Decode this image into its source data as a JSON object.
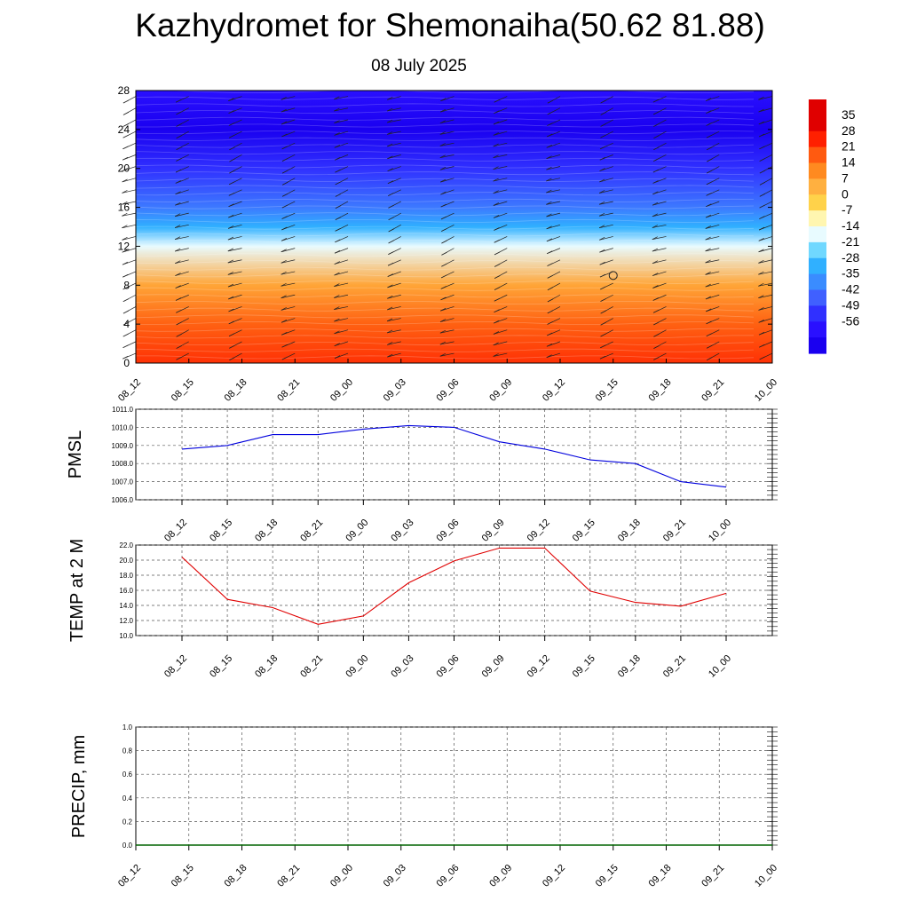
{
  "header": {
    "title": "Kazhydromet for Shemonaiha(50.62 81.88)",
    "subtitle": "08 July 2025"
  },
  "chart_data": [
    {
      "type": "heatmap",
      "name": "cross-section",
      "xlabel": "",
      "ylabel": "",
      "x": [
        "08_12",
        "08_15",
        "08_18",
        "08_21",
        "09_00",
        "09_03",
        "09_06",
        "09_09",
        "09_12",
        "09_15",
        "09_18",
        "09_21",
        "10_00"
      ],
      "y_ticks": [
        0,
        4,
        8,
        12,
        16,
        20,
        24,
        28
      ],
      "ylim": [
        0,
        28
      ],
      "legend_position": "right",
      "colorbar_levels": [
        35,
        28,
        21,
        14,
        7,
        0,
        -7,
        -14,
        -21,
        -28,
        -35,
        -42,
        -49,
        -56
      ],
      "temperature_profile": [
        {
          "height": 0,
          "value": 26
        },
        {
          "height": 4,
          "value": 20
        },
        {
          "height": 8,
          "value": 9
        },
        {
          "height": 12,
          "value": -14
        },
        {
          "height": 14,
          "value": -28
        },
        {
          "height": 16,
          "value": -38
        },
        {
          "height": 20,
          "value": -49
        },
        {
          "height": 24,
          "value": -60
        },
        {
          "height": 28,
          "value": -56
        }
      ],
      "wind_barbs": "present at every time step and level; calm marker near 09_15 at 9",
      "colors": {
        "warm": "#ff2200",
        "neutral": "#fff6b0",
        "cold": "#1010ff"
      }
    },
    {
      "type": "line",
      "name": "PMSL",
      "ylabel": "PMSL",
      "x": [
        "08_12",
        "08_15",
        "08_18",
        "08_21",
        "09_00",
        "09_03",
        "09_06",
        "09_09",
        "09_12",
        "09_15",
        "09_18",
        "09_21",
        "10_00"
      ],
      "y_ticks": [
        "1006.0",
        "1007.0",
        "1008.0",
        "1009.0",
        "1010.0",
        "1011.0"
      ],
      "ylim": [
        1006,
        1011
      ],
      "series": [
        {
          "color": "#0000dd",
          "values": [
            1008.8,
            1009.0,
            1009.6,
            1009.6,
            1009.9,
            1010.1,
            1010.0,
            1009.2,
            1008.8,
            1008.2,
            1008.0,
            1007.0,
            1006.7
          ]
        }
      ],
      "grid": true
    },
    {
      "type": "line",
      "name": "TEMP at 2 M",
      "ylabel": "TEMP at 2 M",
      "x": [
        "08_12",
        "08_15",
        "08_18",
        "08_21",
        "09_00",
        "09_03",
        "09_06",
        "09_09",
        "09_12",
        "09_15",
        "09_18",
        "09_21",
        "10_00"
      ],
      "y_ticks": [
        "10.0",
        "12.0",
        "14.0",
        "16.0",
        "18.0",
        "20.0",
        "22.0"
      ],
      "ylim": [
        10,
        22
      ],
      "series": [
        {
          "color": "#e00000",
          "values": [
            20.4,
            14.8,
            13.7,
            11.5,
            12.6,
            17.0,
            19.9,
            21.6,
            21.6,
            15.9,
            14.4,
            13.9,
            15.6
          ]
        }
      ],
      "grid": true
    },
    {
      "type": "bar",
      "name": "PRECIP, mm",
      "ylabel": "PRECIP, mm",
      "x": [
        "08_12",
        "08_15",
        "08_18",
        "08_21",
        "09_00",
        "09_03",
        "09_06",
        "09_09",
        "09_12",
        "09_15",
        "09_18",
        "09_21",
        "10_00"
      ],
      "y_ticks": [
        "0.0",
        "0.2",
        "0.4",
        "0.6",
        "0.8",
        "1.0"
      ],
      "ylim": [
        0,
        1
      ],
      "values": [
        0,
        0,
        0,
        0,
        0,
        0,
        0,
        0,
        0,
        0,
        0,
        0,
        0
      ],
      "grid": true,
      "colors": {
        "baseline": "#006400"
      }
    }
  ]
}
